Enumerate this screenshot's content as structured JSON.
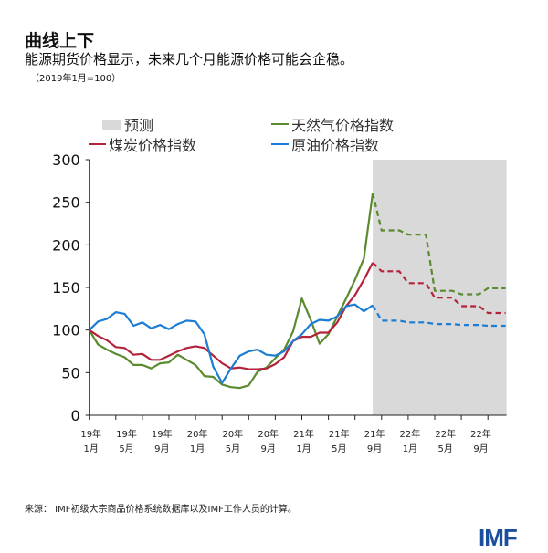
{
  "title": "曲线上下",
  "subtitle": "能源期货价格显示，未来几个月能源价格可能会企稳。",
  "unit": "（2019年1月=100）",
  "source": "来源：  IMF初级大宗商品价格系统数据库以及IMF工作人员的计算。",
  "logo": "IMF",
  "colors": {
    "gas": "#5b8a2f",
    "coal": "#b4233b",
    "oil": "#1b7dd3",
    "forecast": "#d9d9d9",
    "logo": "#1a4f9c"
  },
  "chart_data": {
    "type": "line",
    "ylim": [
      0,
      300
    ],
    "yticks": [
      0,
      50,
      100,
      150,
      200,
      250,
      300
    ],
    "x_start": "2019-01",
    "x_end": "2022-12",
    "forecast_start": "2021-09",
    "xtick_labels": [
      {
        "month": "2019-01",
        "line1": "19年",
        "line2": "1月"
      },
      {
        "month": "2019-05",
        "line1": "19年",
        "line2": "5月"
      },
      {
        "month": "2019-09",
        "line1": "19年",
        "line2": "9月"
      },
      {
        "month": "2020-01",
        "line1": "20年",
        "line2": "1月"
      },
      {
        "month": "2020-05",
        "line1": "20年",
        "line2": "5月"
      },
      {
        "month": "2020-09",
        "line1": "20年",
        "line2": "9月"
      },
      {
        "month": "2021-01",
        "line1": "21年",
        "line2": "1月"
      },
      {
        "month": "2021-05",
        "line1": "21年",
        "line2": "5月"
      },
      {
        "month": "2021-09",
        "line1": "21年",
        "line2": "9月"
      },
      {
        "month": "2022-01",
        "line1": "22年",
        "line2": "1月"
      },
      {
        "month": "2022-05",
        "line1": "22年",
        "line2": "5月"
      },
      {
        "month": "2022-09",
        "line1": "22年",
        "line2": "9月"
      }
    ],
    "legend": [
      {
        "label": "预测",
        "key": "forecast"
      },
      {
        "label": "天然气价格指数",
        "key": "gas"
      },
      {
        "label": "煤炭价格指数",
        "key": "coal"
      },
      {
        "label": "原油价格指数",
        "key": "oil"
      }
    ],
    "series": [
      {
        "name": "天然气价格指数",
        "key": "gas",
        "values": [
          100,
          83,
          77,
          72,
          68,
          59,
          59,
          55,
          61,
          62,
          71,
          65,
          59,
          46,
          45,
          36,
          33,
          32,
          35,
          51,
          56,
          67,
          77,
          98,
          137,
          112,
          84,
          95,
          116,
          137,
          159,
          184,
          261,
          217,
          217,
          217,
          212,
          212,
          212,
          146,
          146,
          146,
          142,
          142,
          142,
          149,
          149,
          149
        ]
      },
      {
        "name": "煤炭价格指数",
        "key": "coal",
        "values": [
          100,
          93,
          88,
          80,
          79,
          71,
          72,
          65,
          65,
          70,
          75,
          79,
          81,
          79,
          70,
          61,
          55,
          56,
          54,
          54,
          55,
          60,
          68,
          87,
          92,
          92,
          97,
          97,
          109,
          128,
          141,
          159,
          179,
          169,
          169,
          169,
          155,
          155,
          155,
          138,
          138,
          138,
          128,
          128,
          128,
          120,
          120,
          120
        ]
      },
      {
        "name": "原油价格指数",
        "key": "oil",
        "values": [
          100,
          110,
          113,
          121,
          119,
          105,
          109,
          102,
          106,
          101,
          107,
          111,
          110,
          95,
          57,
          38,
          55,
          70,
          75,
          77,
          71,
          70,
          75,
          87,
          95,
          107,
          112,
          111,
          116,
          128,
          130,
          122,
          129,
          111,
          111,
          111,
          109,
          109,
          109,
          107,
          107,
          107,
          106,
          106,
          106,
          105,
          105,
          105
        ]
      }
    ]
  }
}
